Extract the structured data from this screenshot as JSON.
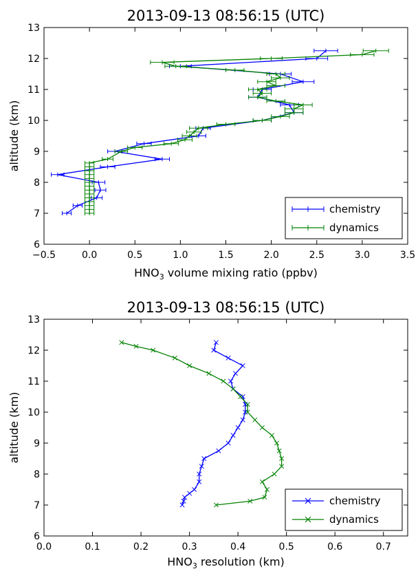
{
  "chart_data": [
    {
      "type": "line",
      "title": "2013-09-13 08:56:15 (UTC)",
      "xlabel": "HNO",
      "xlabel_sub": "3",
      "xlabel_rest": " volume mixing ratio (ppbv)",
      "ylabel": "altitude (km)",
      "xlim": [
        -0.5,
        3.5
      ],
      "ylim": [
        6,
        13
      ],
      "xticks": [
        "−0.5",
        "0.0",
        "0.5",
        "1.0",
        "1.5",
        "2.0",
        "2.5",
        "3.0",
        "3.5"
      ],
      "xtick_values": [
        -0.5,
        0.0,
        0.5,
        1.0,
        1.5,
        2.0,
        2.5,
        3.0,
        3.5
      ],
      "yticks": [
        "6",
        "7",
        "8",
        "9",
        "10",
        "11",
        "12",
        "13"
      ],
      "ytick_values": [
        6,
        7,
        8,
        9,
        10,
        11,
        12,
        13
      ],
      "legend_position": "lower-right",
      "marker": "errorbar",
      "series": [
        {
          "name": "chemistry",
          "color": "#0000ff",
          "points": [
            [
              -0.25,
              7.0,
              0.05
            ],
            [
              -0.13,
              7.25,
              0.05
            ],
            [
              0.08,
              7.5,
              0.06
            ],
            [
              0.12,
              7.75,
              0.06
            ],
            [
              0.1,
              8.0,
              0.07
            ],
            [
              -0.35,
              8.25,
              0.07
            ],
            [
              0.2,
              8.5,
              0.08
            ],
            [
              0.8,
              8.75,
              0.08
            ],
            [
              0.28,
              9.0,
              0.08
            ],
            [
              0.6,
              9.25,
              0.08
            ],
            [
              1.2,
              9.5,
              0.08
            ],
            [
              1.25,
              9.75,
              0.08
            ],
            [
              1.9,
              10.0,
              0.1
            ],
            [
              2.25,
              10.25,
              0.1
            ],
            [
              2.2,
              10.5,
              0.1
            ],
            [
              1.85,
              10.75,
              0.1
            ],
            [
              1.9,
              11.0,
              0.1
            ],
            [
              2.35,
              11.25,
              0.12
            ],
            [
              2.1,
              11.5,
              0.12
            ],
            [
              1.0,
              11.75,
              0.12
            ],
            [
              2.5,
              12.0,
              0.12
            ],
            [
              2.6,
              12.25,
              0.13
            ]
          ]
        },
        {
          "name": "dynamics",
          "color": "#008000",
          "points": [
            [
              0.0,
              7.0,
              0.05
            ],
            [
              0.0,
              7.125,
              0.05
            ],
            [
              0.0,
              7.25,
              0.05
            ],
            [
              0.0,
              7.375,
              0.05
            ],
            [
              0.0,
              7.5,
              0.05
            ],
            [
              0.0,
              7.625,
              0.05
            ],
            [
              0.0,
              7.75,
              0.05
            ],
            [
              0.0,
              7.875,
              0.05
            ],
            [
              0.0,
              8.0,
              0.05
            ],
            [
              0.0,
              8.125,
              0.05
            ],
            [
              0.0,
              8.25,
              0.05
            ],
            [
              0.0,
              8.375,
              0.05
            ],
            [
              0.0,
              8.5,
              0.05
            ],
            [
              0.0,
              8.625,
              0.05
            ],
            [
              0.2,
              8.75,
              0.06
            ],
            [
              0.35,
              9.0,
              0.07
            ],
            [
              0.5,
              9.125,
              0.08
            ],
            [
              0.9,
              9.25,
              0.08
            ],
            [
              1.05,
              9.375,
              0.08
            ],
            [
              1.1,
              9.5,
              0.08
            ],
            [
              1.15,
              9.625,
              0.08
            ],
            [
              1.2,
              9.75,
              0.1
            ],
            [
              1.5,
              9.875,
              0.1
            ],
            [
              1.9,
              10.0,
              0.1
            ],
            [
              2.1,
              10.125,
              0.1
            ],
            [
              2.25,
              10.25,
              0.1
            ],
            [
              2.25,
              10.375,
              0.1
            ],
            [
              2.35,
              10.5,
              0.1
            ],
            [
              2.05,
              10.625,
              0.1
            ],
            [
              1.85,
              10.75,
              0.1
            ],
            [
              1.9,
              10.875,
              0.1
            ],
            [
              1.85,
              11.0,
              0.1
            ],
            [
              2.05,
              11.125,
              0.1
            ],
            [
              1.95,
              11.25,
              0.1
            ],
            [
              2.1,
              11.375,
              0.1
            ],
            [
              2.05,
              11.5,
              0.1
            ],
            [
              1.6,
              11.625,
              0.1
            ],
            [
              0.95,
              11.75,
              0.12
            ],
            [
              0.8,
              11.875,
              0.13
            ],
            [
              2.0,
              12.0,
              0.12
            ],
            [
              3.0,
              12.125,
              0.13
            ],
            [
              3.15,
              12.25,
              0.14
            ]
          ]
        }
      ]
    },
    {
      "type": "line",
      "title": "2013-09-13 08:56:15 (UTC)",
      "xlabel": "HNO",
      "xlabel_sub": "3",
      "xlabel_rest": " resolution (km)",
      "ylabel": "altitude (km)",
      "xlim": [
        0.0,
        0.75
      ],
      "ylim": [
        6,
        13
      ],
      "xticks": [
        "0.0",
        "0.1",
        "0.2",
        "0.3",
        "0.4",
        "0.5",
        "0.6",
        "0.7"
      ],
      "xtick_values": [
        0.0,
        0.1,
        0.2,
        0.3,
        0.4,
        0.5,
        0.6,
        0.7
      ],
      "yticks": [
        "6",
        "7",
        "8",
        "9",
        "10",
        "11",
        "12",
        "13"
      ],
      "ytick_values": [
        6,
        7,
        8,
        9,
        10,
        11,
        12,
        13
      ],
      "legend_position": "lower-right",
      "marker": "x",
      "series": [
        {
          "name": "chemistry",
          "color": "#0000ff",
          "points": [
            [
              0.285,
              7.0
            ],
            [
              0.288,
              7.125
            ],
            [
              0.29,
              7.25
            ],
            [
              0.3,
              7.375
            ],
            [
              0.31,
              7.5
            ],
            [
              0.32,
              7.75
            ],
            [
              0.32,
              8.0
            ],
            [
              0.325,
              8.25
            ],
            [
              0.33,
              8.5
            ],
            [
              0.36,
              8.75
            ],
            [
              0.38,
              9.0
            ],
            [
              0.39,
              9.25
            ],
            [
              0.4,
              9.5
            ],
            [
              0.41,
              9.75
            ],
            [
              0.415,
              10.0
            ],
            [
              0.415,
              10.25
            ],
            [
              0.41,
              10.5
            ],
            [
              0.39,
              10.75
            ],
            [
              0.385,
              11.0
            ],
            [
              0.395,
              11.25
            ],
            [
              0.41,
              11.5
            ],
            [
              0.38,
              11.75
            ],
            [
              0.35,
              12.0
            ],
            [
              0.355,
              12.25
            ]
          ]
        },
        {
          "name": "dynamics",
          "color": "#008000",
          "points": [
            [
              0.355,
              7.0
            ],
            [
              0.425,
              7.125
            ],
            [
              0.455,
              7.25
            ],
            [
              0.46,
              7.5
            ],
            [
              0.45,
              7.75
            ],
            [
              0.475,
              8.0
            ],
            [
              0.49,
              8.25
            ],
            [
              0.49,
              8.5
            ],
            [
              0.485,
              8.75
            ],
            [
              0.48,
              9.0
            ],
            [
              0.47,
              9.25
            ],
            [
              0.45,
              9.5
            ],
            [
              0.435,
              9.75
            ],
            [
              0.42,
              10.0
            ],
            [
              0.42,
              10.25
            ],
            [
              0.405,
              10.5
            ],
            [
              0.39,
              10.75
            ],
            [
              0.37,
              11.0
            ],
            [
              0.34,
              11.25
            ],
            [
              0.3,
              11.5
            ],
            [
              0.27,
              11.75
            ],
            [
              0.225,
              12.0
            ],
            [
              0.19,
              12.125
            ],
            [
              0.16,
              12.25
            ]
          ]
        }
      ]
    }
  ]
}
